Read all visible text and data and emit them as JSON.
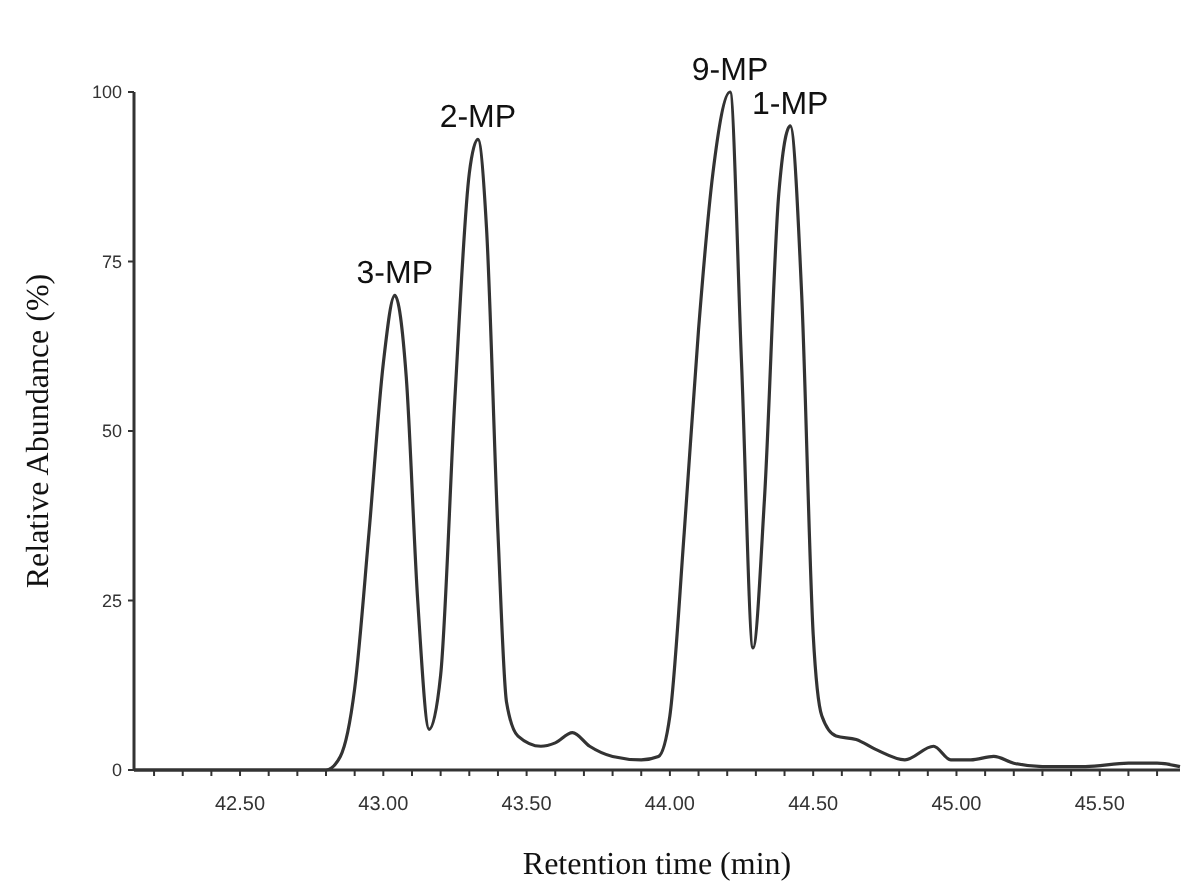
{
  "chart_data": {
    "type": "line",
    "xlabel": "Retention time (min)",
    "ylabel": "Relative Abundance (%)",
    "xlim": [
      42.13,
      45.78
    ],
    "ylim": [
      0,
      100
    ],
    "xticks": [
      {
        "value": 42.2,
        "label": null
      },
      {
        "value": 42.3,
        "label": null
      },
      {
        "value": 42.4,
        "label": null
      },
      {
        "value": 42.5,
        "label": "42.50"
      },
      {
        "value": 42.6,
        "label": null
      },
      {
        "value": 42.7,
        "label": null
      },
      {
        "value": 42.8,
        "label": null
      },
      {
        "value": 42.9,
        "label": null
      },
      {
        "value": 43,
        "label": "43.00"
      },
      {
        "value": 43.1,
        "label": null
      },
      {
        "value": 43.2,
        "label": null
      },
      {
        "value": 43.3,
        "label": null
      },
      {
        "value": 43.4,
        "label": null
      },
      {
        "value": 43.5,
        "label": "43.50"
      },
      {
        "value": 43.6,
        "label": null
      },
      {
        "value": 43.7,
        "label": null
      },
      {
        "value": 43.8,
        "label": null
      },
      {
        "value": 43.9,
        "label": null
      },
      {
        "value": 44,
        "label": "44.00"
      },
      {
        "value": 44.1,
        "label": null
      },
      {
        "value": 44.2,
        "label": null
      },
      {
        "value": 44.3,
        "label": null
      },
      {
        "value": 44.4,
        "label": null
      },
      {
        "value": 44.5,
        "label": "44.50"
      },
      {
        "value": 44.6,
        "label": null
      },
      {
        "value": 44.7,
        "label": null
      },
      {
        "value": 44.8,
        "label": null
      },
      {
        "value": 44.9,
        "label": null
      },
      {
        "value": 45,
        "label": "45.00"
      },
      {
        "value": 45.1,
        "label": null
      },
      {
        "value": 45.2,
        "label": null
      },
      {
        "value": 45.3,
        "label": null
      },
      {
        "value": 45.4,
        "label": null
      },
      {
        "value": 45.5,
        "label": "45.50"
      },
      {
        "value": 45.6,
        "label": null
      },
      {
        "value": 45.7,
        "label": null
      }
    ],
    "yticks": [
      0,
      25,
      50,
      75,
      100
    ],
    "grid": false,
    "marker": "none",
    "line_style": "solid",
    "series": [
      {
        "color": "#333333",
        "x": [
          42.13,
          42.8,
          42.85,
          42.9,
          42.95,
          43.0,
          43.04,
          43.08,
          43.12,
          43.16,
          43.2,
          43.25,
          43.3,
          43.33,
          43.36,
          43.4,
          43.43,
          43.47,
          43.55,
          43.6,
          43.66,
          43.72,
          43.8,
          43.9,
          43.96,
          44.0,
          44.05,
          44.1,
          44.15,
          44.21,
          44.25,
          44.29,
          44.33,
          44.38,
          44.42,
          44.46,
          44.5,
          44.53,
          44.58,
          44.65,
          44.72,
          44.82,
          44.92,
          44.98,
          45.05,
          45.13,
          45.2,
          45.3,
          45.45,
          45.6,
          45.7,
          45.78
        ],
        "values": [
          0,
          0,
          2,
          12,
          35,
          60,
          70,
          58,
          25,
          6,
          14,
          55,
          88,
          93,
          80,
          35,
          10,
          5,
          3.5,
          4,
          5.5,
          3.5,
          2,
          1.5,
          2,
          8,
          35,
          65,
          88,
          100,
          60,
          18,
          40,
          85,
          95,
          70,
          20,
          8,
          5,
          4.5,
          3,
          1.5,
          3.5,
          1.5,
          1.5,
          2,
          1,
          0.5,
          0.5,
          1,
          1,
          0.5
        ]
      }
    ],
    "annotations": [
      {
        "text": "3-MP",
        "x": 43.04,
        "y": 70
      },
      {
        "text": "2-MP",
        "x": 43.33,
        "y": 93
      },
      {
        "text": "9-MP",
        "x": 44.21,
        "y": 100
      },
      {
        "text": "1-MP",
        "x": 44.42,
        "y": 95
      }
    ]
  }
}
